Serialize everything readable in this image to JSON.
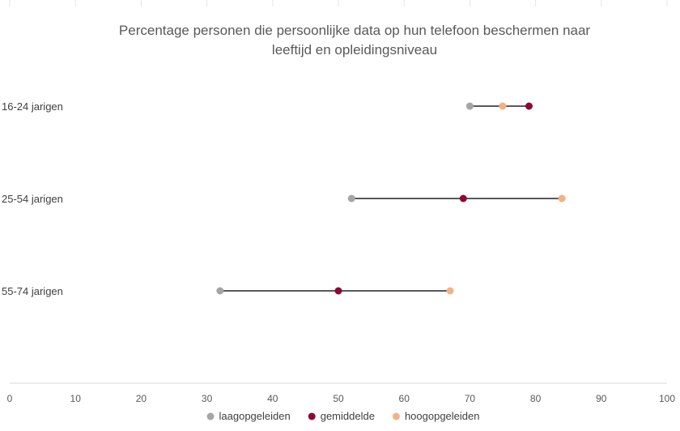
{
  "chart_data": {
    "type": "dumbbell",
    "title_lines": [
      "Percentage personen die persoonlijke data op hun telefoon beschermen naar",
      "leeftijd en opleidingsniveau"
    ],
    "categories": [
      "16-24 jarigen",
      "25-54 jarigen",
      "55-74 jarigen"
    ],
    "series": [
      {
        "name": "laagopgeleiden",
        "color": "#a5a5a5",
        "values": [
          70,
          52,
          32
        ]
      },
      {
        "name": "gemiddelde",
        "color": "#8b0a32",
        "values": [
          79,
          69,
          50
        ]
      },
      {
        "name": "hoogopgeleiden",
        "color": "#f4b183",
        "values": [
          75,
          84,
          67
        ]
      }
    ],
    "xlim": [
      0,
      100
    ],
    "xticks": [
      0,
      10,
      20,
      30,
      40,
      50,
      60,
      70,
      80,
      90,
      100
    ],
    "connector_color": "#595959",
    "legend_position": "bottom",
    "grid": "vertical-top-only"
  }
}
